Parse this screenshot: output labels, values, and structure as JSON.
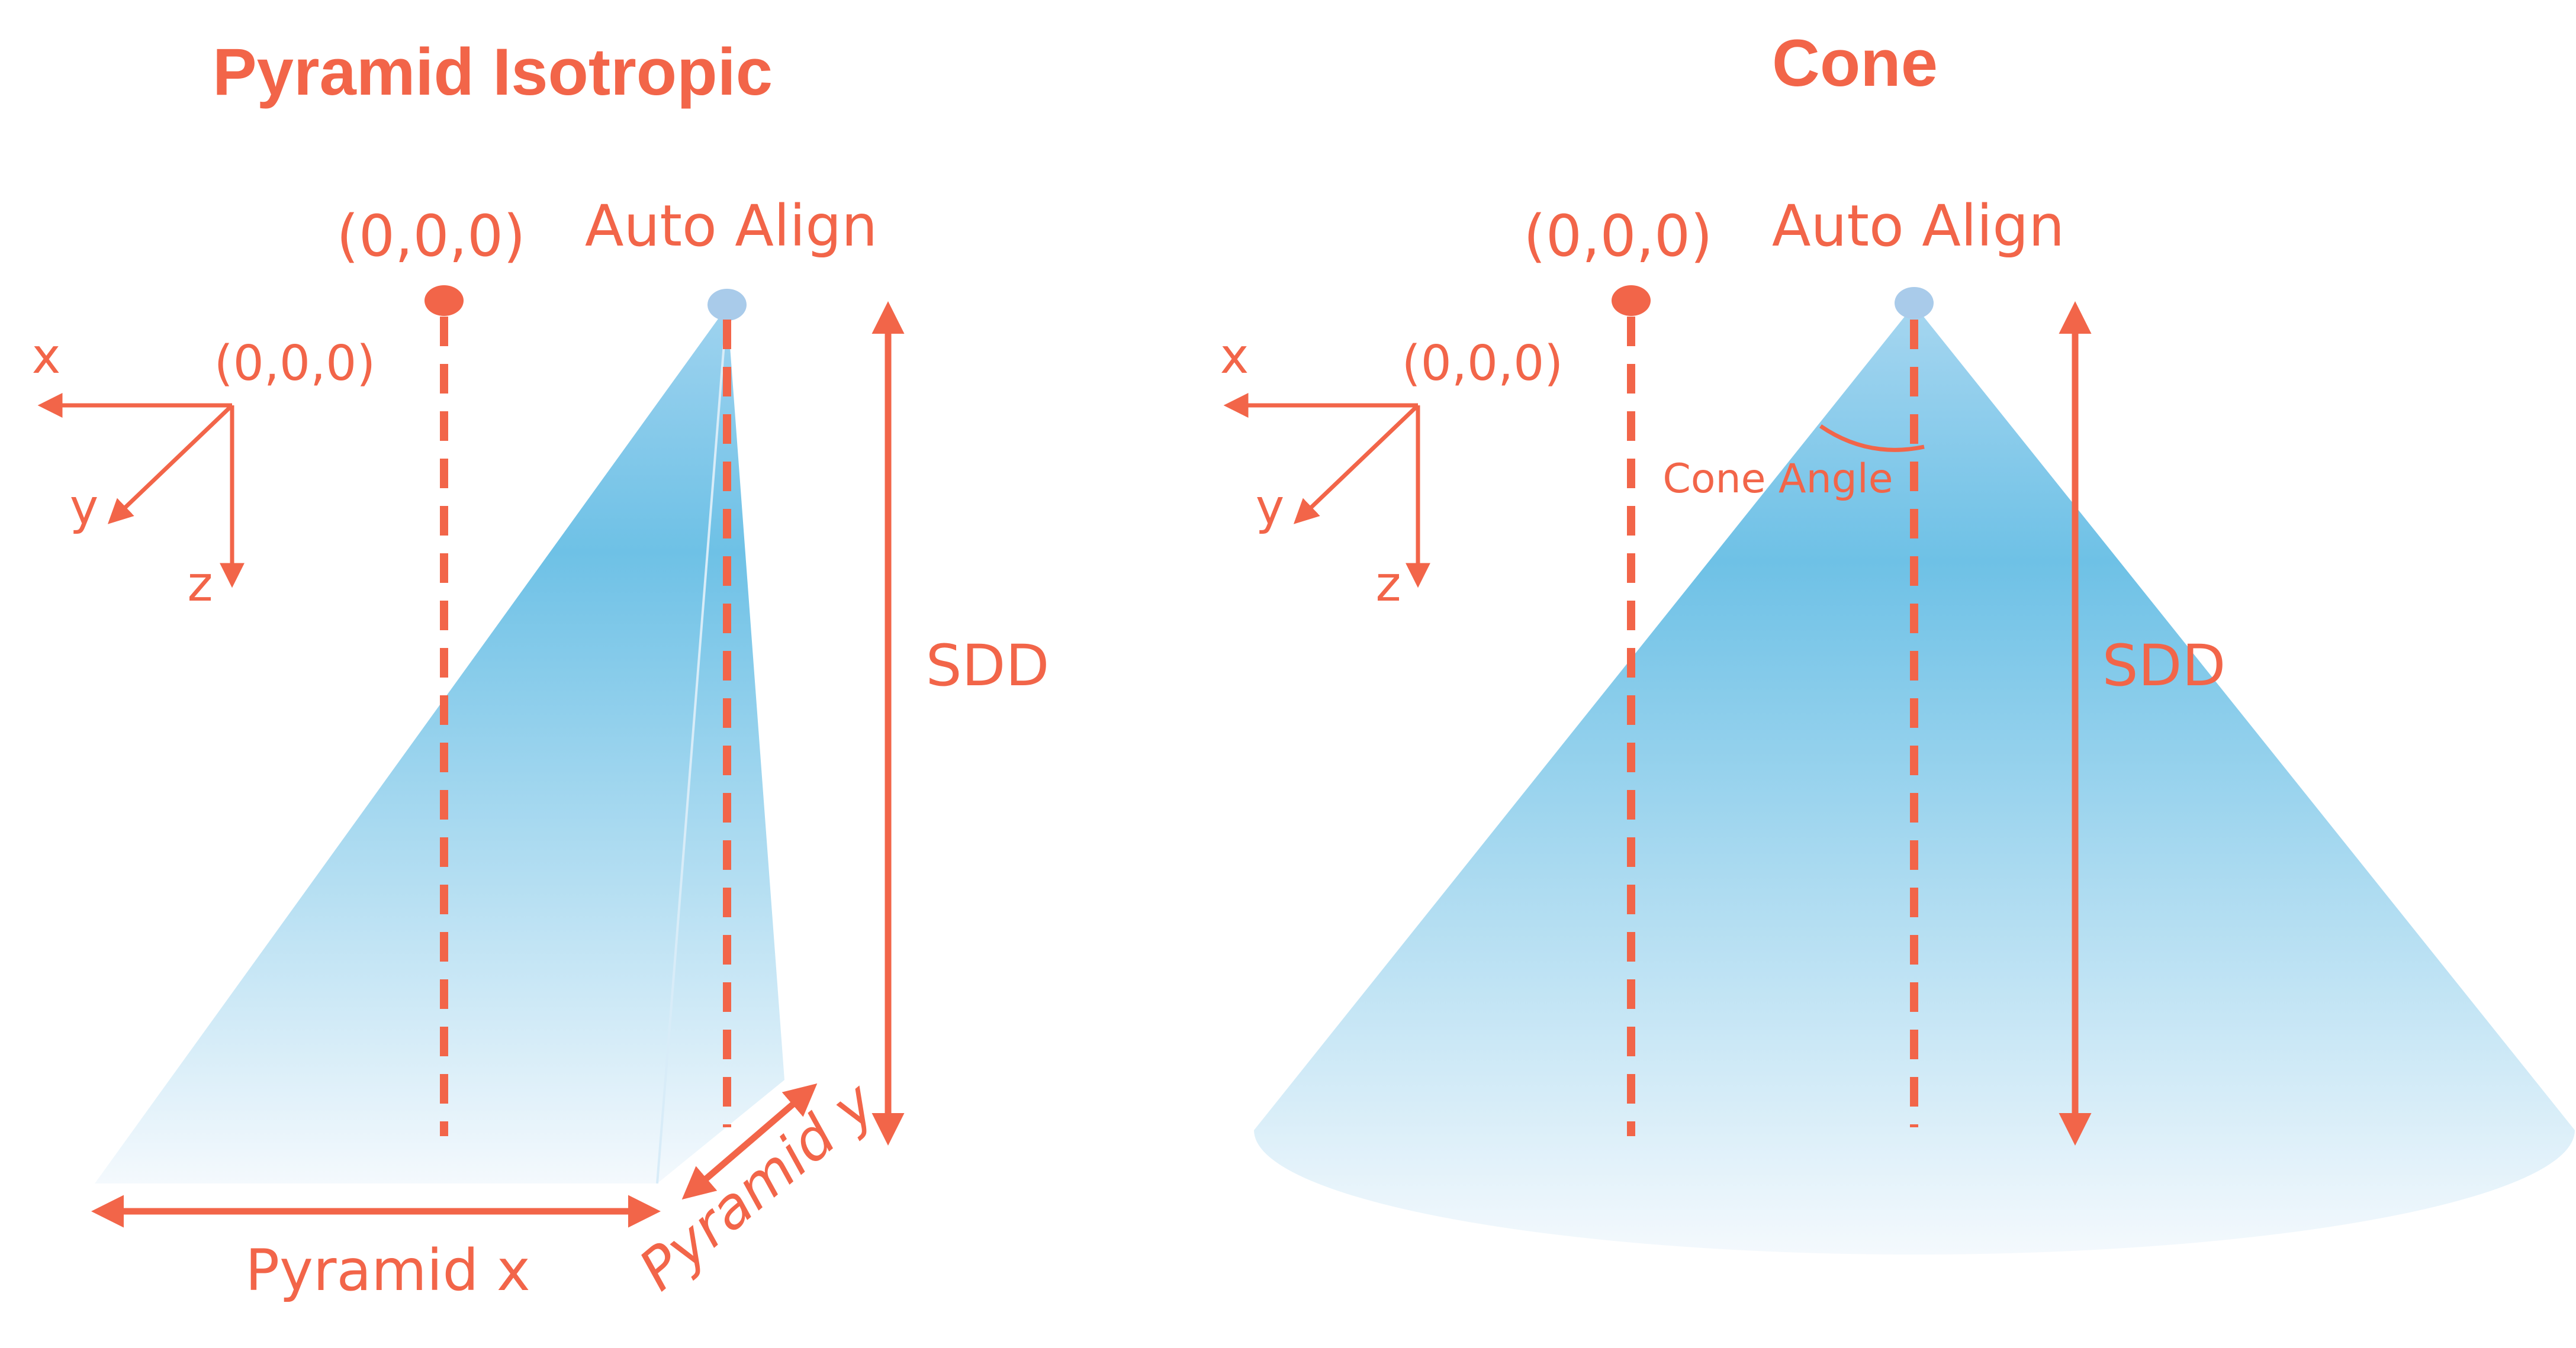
{
  "pyramid_panel": {
    "title": "Pyramid Isotropic",
    "origin_label": "(0,0,0)",
    "auto_align_label": "Auto Align",
    "axes": {
      "origin_label": "(0,0,0)",
      "x_label": "x",
      "y_label": "y",
      "z_label": "z"
    },
    "sdd_label": "SDD",
    "pyramid_x_label": "Pyramid x",
    "pyramid_y_label": "Pyramid y"
  },
  "cone_panel": {
    "title": "Cone",
    "origin_label": "(0,0,0)",
    "auto_align_label": "Auto Align",
    "axes": {
      "origin_label": "(0,0,0)",
      "x_label": "x",
      "y_label": "y",
      "z_label": "z"
    },
    "cone_angle_label": "Cone Angle",
    "sdd_label": "SDD"
  },
  "colors": {
    "accent": "#F26549",
    "beam_top": "#6EC1E6",
    "beam_bottom": "#F2F8FC",
    "source_marker": "#A9CBEA"
  }
}
